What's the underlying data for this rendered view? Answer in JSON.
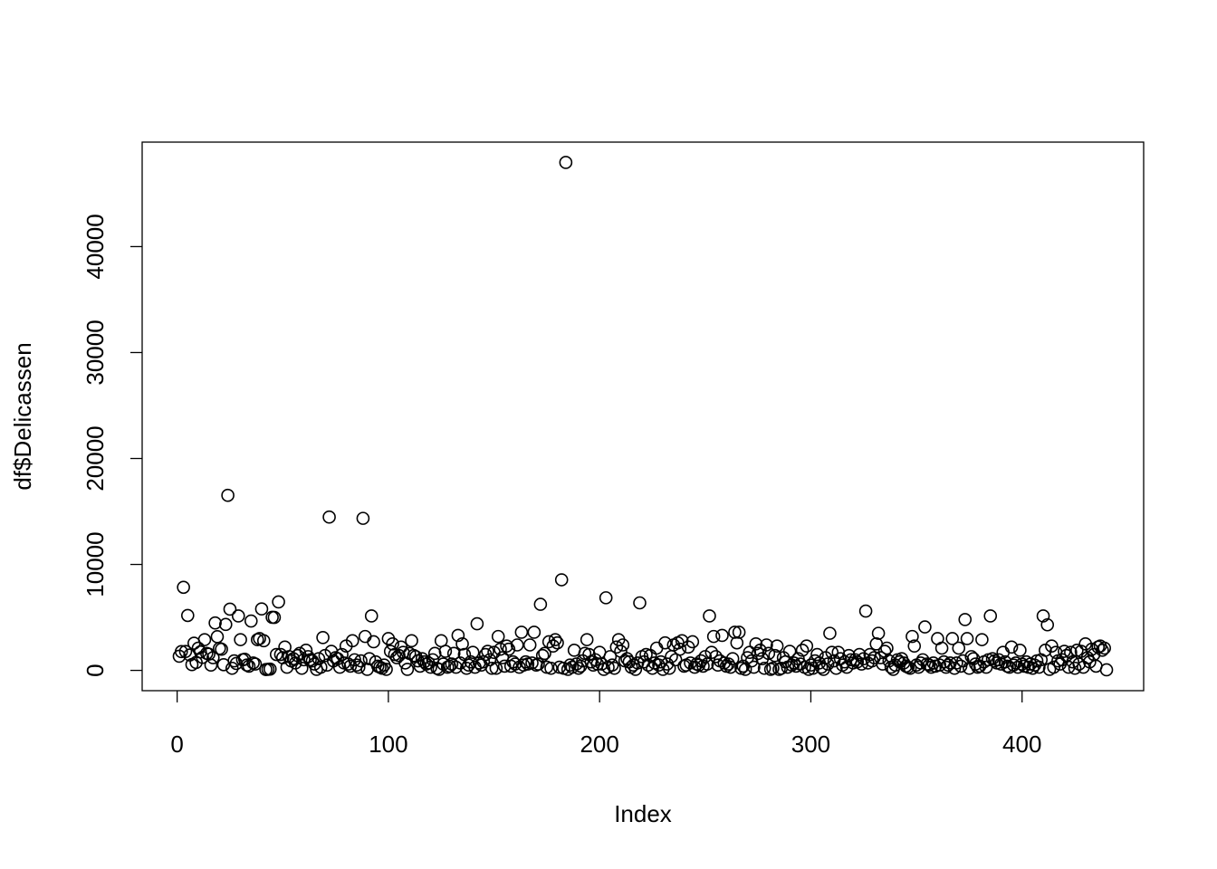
{
  "chart_data": {
    "type": "scatter",
    "xlabel": "Index",
    "ylabel": "df$Delicassen",
    "xlim": [
      -16.56,
      457.56
    ],
    "ylim": [
      -1915,
      49862
    ],
    "xticks": [
      0,
      100,
      200,
      300,
      400
    ],
    "yticks": [
      0,
      10000,
      20000,
      30000,
      40000
    ],
    "color": "#000000",
    "x": [
      1,
      2,
      3,
      4,
      5,
      6,
      7,
      8,
      9,
      10,
      11,
      12,
      13,
      14,
      15,
      16,
      17,
      18,
      19,
      20,
      21,
      22,
      23,
      24,
      25,
      26,
      27,
      28,
      29,
      30,
      31,
      32,
      33,
      34,
      35,
      36,
      37,
      38,
      39,
      40,
      41,
      42,
      43,
      44,
      45,
      46,
      47,
      48,
      49,
      50,
      51,
      52,
      53,
      54,
      55,
      56,
      57,
      58,
      59,
      60,
      61,
      62,
      63,
      64,
      65,
      66,
      67,
      68,
      69,
      70,
      71,
      72,
      73,
      74,
      75,
      76,
      77,
      78,
      79,
      80,
      81,
      82,
      83,
      84,
      85,
      86,
      87,
      88,
      89,
      90,
      91,
      92,
      93,
      94,
      95,
      96,
      97,
      98,
      99,
      100,
      101,
      102,
      103,
      104,
      105,
      106,
      107,
      108,
      109,
      110,
      111,
      112,
      113,
      114,
      115,
      116,
      117,
      118,
      119,
      120,
      121,
      122,
      123,
      124,
      125,
      126,
      127,
      128,
      129,
      130,
      131,
      132,
      133,
      134,
      135,
      136,
      137,
      138,
      139,
      140,
      141,
      142,
      143,
      144,
      145,
      146,
      147,
      148,
      149,
      150,
      151,
      152,
      153,
      154,
      155,
      156,
      157,
      158,
      159,
      160,
      161,
      162,
      163,
      164,
      165,
      166,
      167,
      168,
      169,
      170,
      171,
      172,
      173,
      174,
      175,
      176,
      177,
      178,
      179,
      180,
      181,
      182,
      183,
      184,
      185,
      186,
      187,
      188,
      189,
      190,
      191,
      192,
      193,
      194,
      195,
      196,
      197,
      198,
      199,
      200,
      201,
      202,
      203,
      204,
      205,
      206,
      207,
      208,
      209,
      210,
      211,
      212,
      213,
      214,
      215,
      216,
      217,
      218,
      219,
      220,
      221,
      222,
      223,
      224,
      225,
      226,
      227,
      228,
      229,
      230,
      231,
      232,
      233,
      234,
      235,
      236,
      237,
      238,
      239,
      240,
      241,
      242,
      243,
      244,
      245,
      246,
      247,
      248,
      249,
      250,
      251,
      252,
      253,
      254,
      255,
      256,
      257,
      258,
      259,
      260,
      261,
      262,
      263,
      264,
      265,
      266,
      267,
      268,
      269,
      270,
      271,
      272,
      273,
      274,
      275,
      276,
      277,
      278,
      279,
      280,
      281,
      282,
      283,
      284,
      285,
      286,
      287,
      288,
      289,
      290,
      291,
      292,
      293,
      294,
      295,
      296,
      297,
      298,
      299,
      300,
      301,
      302,
      303,
      304,
      305,
      306,
      307,
      308,
      309,
      310,
      311,
      312,
      313,
      314,
      315,
      316,
      317,
      318,
      319,
      320,
      321,
      322,
      323,
      324,
      325,
      326,
      327,
      328,
      329,
      330,
      331,
      332,
      333,
      334,
      335,
      336,
      337,
      338,
      339,
      340,
      341,
      342,
      343,
      344,
      345,
      346,
      347,
      348,
      349,
      350,
      351,
      352,
      353,
      354,
      355,
      356,
      357,
      358,
      359,
      360,
      361,
      362,
      363,
      364,
      365,
      366,
      367,
      368,
      369,
      370,
      371,
      372,
      373,
      374,
      375,
      376,
      377,
      378,
      379,
      380,
      381,
      382,
      383,
      384,
      385,
      386,
      387,
      388,
      389,
      390,
      391,
      392,
      393,
      394,
      395,
      396,
      397,
      398,
      399,
      400,
      401,
      402,
      403,
      404,
      405,
      406,
      407,
      408,
      409,
      410,
      411,
      412,
      413,
      414,
      415,
      416,
      417,
      418,
      419,
      420,
      421,
      422,
      423,
      424,
      425,
      426,
      427,
      428,
      429,
      430,
      431,
      432,
      433,
      434,
      435,
      436,
      437,
      438,
      439,
      440
    ],
    "values": [
      1338,
      1776,
      7844,
      1788,
      5185,
      1451,
      545,
      2566,
      750,
      2098,
      1744,
      1231,
      2900,
      1609,
      1533,
      500,
      1200,
      4478,
      3181,
      2070,
      2000,
      539,
      4334,
      16523,
      5778,
      200,
      900,
      650,
      5137,
      2900,
      1000,
      1050,
      500,
      400,
      4659,
      700,
      600,
      2900,
      3000,
      5800,
      2800,
      80,
      100,
      120,
      5012,
      5000,
      1500,
      6465,
      1500,
      1200,
      2200,
      300,
      1300,
      900,
      1100,
      700,
      1400,
      1600,
      200,
      1000,
      1900,
      1300,
      1000,
      900,
      600,
      100,
      1100,
      300,
      3100,
      1400,
      500,
      14472,
      1800,
      900,
      1200,
      1100,
      300,
      1500,
      700,
      2300,
      600,
      400,
      2800,
      1000,
      500,
      300,
      900,
      14351,
      3200,
      100,
      1100,
      5137,
      2700,
      800,
      400,
      300,
      200,
      500,
      100,
      3000,
      1800,
      2500,
      1500,
      1200,
      1400,
      2200,
      1700,
      700,
      100,
      1600,
      2800,
      1400,
      1300,
      900,
      400,
      1100,
      800,
      600,
      700,
      300,
      1000,
      1600,
      200,
      100,
      2800,
      600,
      1800,
      300,
      400,
      600,
      1600,
      300,
      3300,
      700,
      2500,
      1500,
      200,
      500,
      800,
      1700,
      300,
      4400,
      700,
      500,
      800,
      1500,
      1800,
      1000,
      200,
      1700,
      200,
      3200,
      2000,
      1200,
      400,
      2300,
      2000,
      400,
      800,
      600,
      2400,
      300,
      3600,
      500,
      800,
      600,
      2400,
      700,
      3600,
      500,
      600,
      6236,
      1400,
      1600,
      300,
      2700,
      200,
      2300,
      2900,
      2600,
      300,
      8550,
      200,
      47943,
      100,
      500,
      300,
      1900,
      600,
      200,
      400,
      900,
      1600,
      2900,
      1500,
      800,
      500,
      1000,
      600,
      1700,
      600,
      100,
      6854,
      300,
      1300,
      500,
      200,
      2200,
      2900,
      1800,
      2400,
      900,
      1100,
      800,
      300,
      500,
      100,
      700,
      6372,
      1300,
      800,
      1500,
      500,
      1400,
      200,
      700,
      2100,
      500,
      800,
      100,
      2600,
      600,
      200,
      1300,
      2400,
      1000,
      2600,
      2000,
      2800,
      400,
      500,
      2200,
      700,
      2700,
      300,
      600,
      500,
      900,
      400,
      1300,
      600,
      5137,
      1700,
      3200,
      1300,
      500,
      900,
      3300,
      700,
      400,
      600,
      300,
      1100,
      3600,
      2600,
      3600,
      200,
      400,
      100,
      1200,
      1700,
      900,
      300,
      2500,
      1600,
      1900,
      1100,
      200,
      2400,
      1600,
      100,
      200,
      1400,
      2300,
      100,
      200,
      1200,
      800,
      300,
      1800,
      500,
      700,
      400,
      1100,
      600,
      1900,
      300,
      2300,
      100,
      500,
      200,
      900,
      1500,
      700,
      300,
      100,
      1200,
      600,
      3500,
      1700,
      900,
      200,
      1700,
      1100,
      500,
      800,
      300,
      1400,
      1000,
      700,
      1000,
      800,
      1500,
      600,
      1100,
      5600,
      700,
      1500,
      900,
      1200,
      2500,
      3500,
      1200,
      600,
      1800,
      2100,
      900,
      300,
      100,
      500,
      1000,
      800,
      1100,
      700,
      400,
      300,
      200,
      3200,
      2300,
      500,
      300,
      700,
      1000,
      4100,
      600,
      500,
      300,
      700,
      400,
      3000,
      500,
      2100,
      800,
      300,
      500,
      700,
      3000,
      200,
      700,
      2100,
      400,
      900,
      4800,
      3000,
      200,
      1300,
      1100,
      600,
      300,
      400,
      2900,
      800,
      300,
      1000,
      5137,
      1100,
      900,
      700,
      1000,
      600,
      1700,
      800,
      400,
      300,
      2200,
      500,
      700,
      300,
      1900,
      600,
      400,
      800,
      300,
      600,
      200,
      500,
      900,
      300,
      1000,
      5137,
      1900,
      4300,
      100,
      2300,
      300,
      1700,
      900,
      600,
      1000,
      1800,
      1400,
      300,
      1700,
      800,
      200,
      1900,
      600,
      1800,
      300,
      2500,
      1200,
      800,
      2000,
      1500,
      400,
      2200,
      2300,
      1900,
      2100,
      52
    ]
  }
}
